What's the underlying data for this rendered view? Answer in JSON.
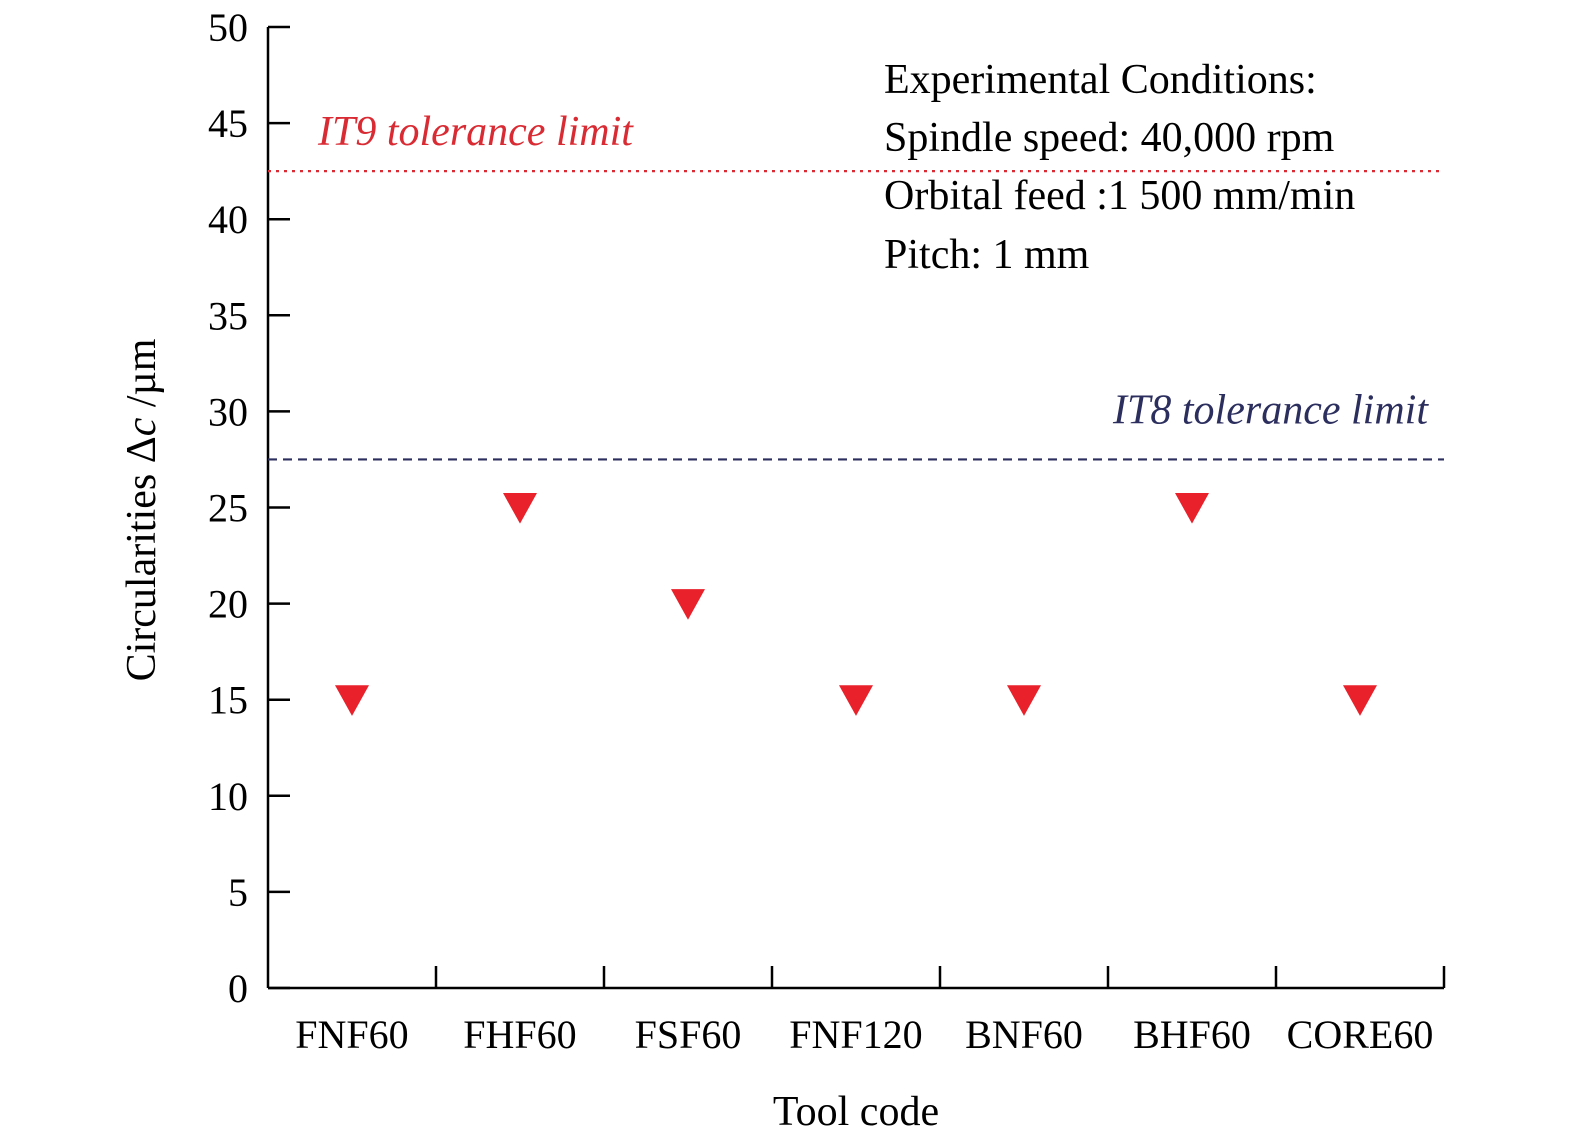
{
  "chart_data": {
    "type": "scatter",
    "title": "",
    "xlabel": "Tool code",
    "ylabel": "Circularities Δc /µm",
    "ylabel_parts": {
      "prefix": "Circularities Δ",
      "variable": "c",
      "suffix": " /µm"
    },
    "categories": [
      "FNF60",
      "FHF60",
      "FSF60",
      "FNF120",
      "BNF60",
      "BHF60",
      "CORE60"
    ],
    "values": [
      15,
      25,
      20,
      15,
      15,
      25,
      15
    ],
    "ylim": [
      0,
      50
    ],
    "yticks": [
      0,
      5,
      10,
      15,
      20,
      25,
      30,
      35,
      40,
      45,
      50
    ],
    "marker": "triangle-down",
    "marker_color": "#e8212b",
    "grid": false,
    "reference_lines": [
      {
        "label": "IT9 tolerance limit",
        "y": 42.5,
        "style": "dotted",
        "color": "#d92b33"
      },
      {
        "label": "IT8 tolerance limit",
        "y": 27.5,
        "style": "dashed",
        "color": "#2c2f5e"
      }
    ],
    "annotations": [
      "Experimental Conditions:",
      "Spindle speed: 40,000 rpm",
      "Orbital feed :1 500 mm/min",
      "Pitch: 1 mm"
    ]
  }
}
